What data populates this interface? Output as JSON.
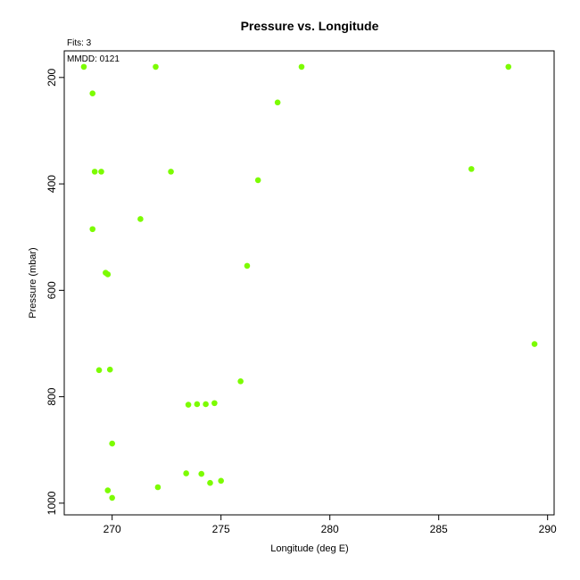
{
  "chart_data": {
    "type": "scatter",
    "title": "Pressure vs. Longitude",
    "xlabel": "Longitude (deg E)",
    "ylabel": "Pressure (mbar)",
    "xlim": [
      267.8,
      290.3
    ],
    "ylim": [
      1022,
      150
    ],
    "y_reversed": true,
    "x_ticks": [
      270,
      275,
      280,
      285,
      290
    ],
    "y_ticks": [
      200,
      400,
      600,
      800,
      1000
    ],
    "grid": false,
    "annotations": [
      "Fits: 3",
      "MMDD: 0121"
    ],
    "point_color": "#7cfc00",
    "points": [
      {
        "x": 268.7,
        "y": 180
      },
      {
        "x": 272.0,
        "y": 180
      },
      {
        "x": 278.7,
        "y": 180
      },
      {
        "x": 288.2,
        "y": 180
      },
      {
        "x": 269.1,
        "y": 230
      },
      {
        "x": 277.6,
        "y": 247
      },
      {
        "x": 269.2,
        "y": 377
      },
      {
        "x": 269.5,
        "y": 377
      },
      {
        "x": 272.7,
        "y": 377
      },
      {
        "x": 286.5,
        "y": 372
      },
      {
        "x": 276.7,
        "y": 393
      },
      {
        "x": 271.3,
        "y": 466
      },
      {
        "x": 269.1,
        "y": 485
      },
      {
        "x": 276.2,
        "y": 554
      },
      {
        "x": 269.7,
        "y": 567
      },
      {
        "x": 269.8,
        "y": 570
      },
      {
        "x": 289.4,
        "y": 701
      },
      {
        "x": 269.4,
        "y": 750
      },
      {
        "x": 269.9,
        "y": 749
      },
      {
        "x": 275.9,
        "y": 771
      },
      {
        "x": 273.5,
        "y": 815
      },
      {
        "x": 273.9,
        "y": 814
      },
      {
        "x": 274.3,
        "y": 814
      },
      {
        "x": 274.7,
        "y": 812
      },
      {
        "x": 270.0,
        "y": 888
      },
      {
        "x": 273.4,
        "y": 944
      },
      {
        "x": 274.1,
        "y": 945
      },
      {
        "x": 275.0,
        "y": 958
      },
      {
        "x": 274.5,
        "y": 962
      },
      {
        "x": 272.1,
        "y": 970
      },
      {
        "x": 269.8,
        "y": 976
      },
      {
        "x": 270.0,
        "y": 990
      }
    ]
  }
}
